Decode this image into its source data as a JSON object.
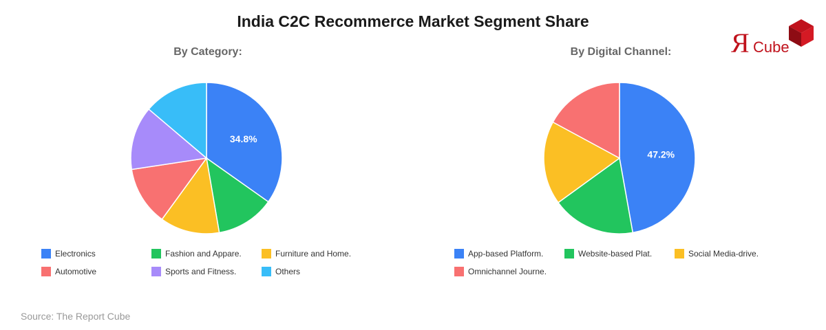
{
  "header": {
    "title": "India C2C Recommerce Market Segment Share"
  },
  "logo": {
    "letter": "Я",
    "word": "Cube",
    "text_color": "#c0121c",
    "cube_color": "#c0121c"
  },
  "source": "Source: The Report Cube",
  "chart_data": [
    {
      "type": "pie",
      "title": "By Category:",
      "categories": [
        "Electronics",
        "Fashion and Appare.",
        "Furniture and Home.",
        "Automotive",
        "Sports and Fitness.",
        "Others"
      ],
      "values": [
        34.8,
        12.5,
        12.7,
        12.6,
        13.6,
        13.8
      ],
      "colors": [
        "#3b82f6",
        "#22c55e",
        "#fbbf24",
        "#f87171",
        "#a78bfa",
        "#38bdf8"
      ],
      "data_labels": [
        "34.8%",
        "",
        "",
        "",
        "",
        ""
      ],
      "legend_position": "bottom"
    },
    {
      "type": "pie",
      "title": "By Digital Channel:",
      "categories": [
        "App-based Platform.",
        "Website-based Plat.",
        "Social Media-drive.",
        "Omnichannel Journe."
      ],
      "values": [
        47.2,
        17.8,
        17.9,
        17.1
      ],
      "colors": [
        "#3b82f6",
        "#22c55e",
        "#fbbf24",
        "#f87171"
      ],
      "data_labels": [
        "47.2%",
        "",
        "",
        ""
      ],
      "legend_position": "bottom"
    }
  ]
}
